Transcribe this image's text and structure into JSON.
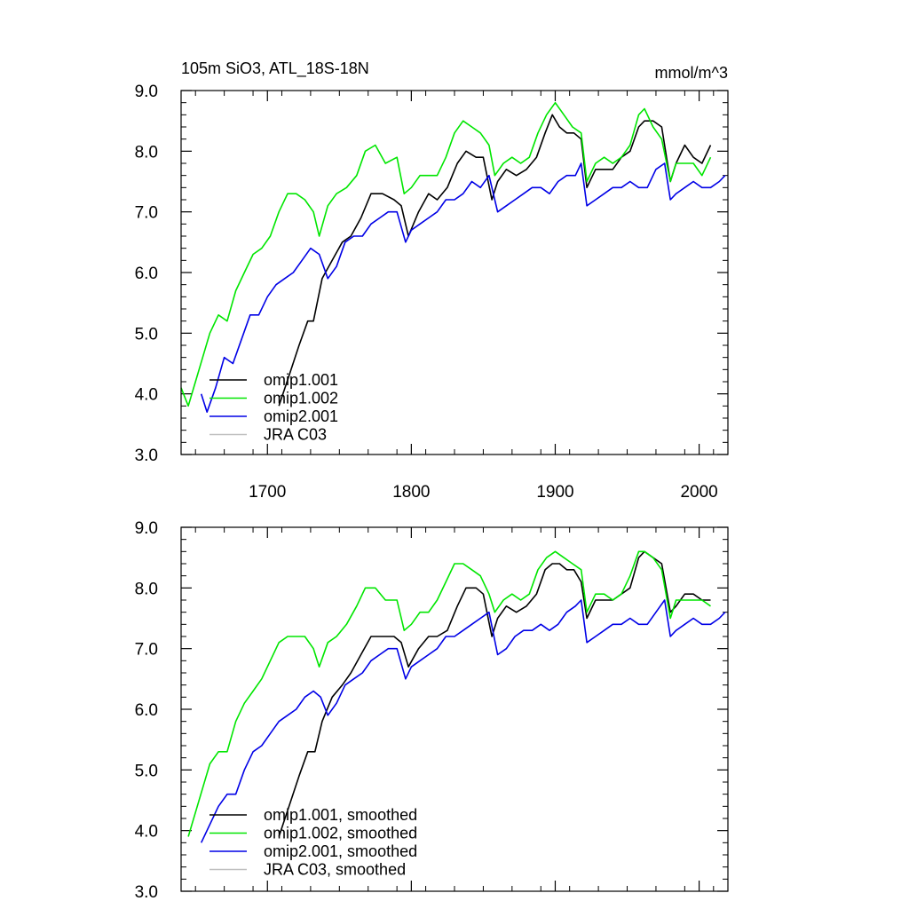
{
  "chart_data": [
    {
      "type": "line",
      "id": "raw",
      "title": "105m SiO3, ATL_18S-18N",
      "units_label": "mmol/m^3",
      "xlim": [
        1640,
        2020
      ],
      "ylim": [
        3.0,
        9.0
      ],
      "x_ticks": [
        1700,
        1800,
        1900,
        2000
      ],
      "x_tick_labels": [
        "1700",
        "1800",
        "1900",
        "2000"
      ],
      "y_ticks": [
        3.0,
        4.0,
        5.0,
        6.0,
        7.0,
        8.0,
        9.0
      ],
      "y_tick_labels": [
        "3.0",
        "4.0",
        "5.0",
        "6.0",
        "7.0",
        "8.0",
        "9.0"
      ],
      "legend": [
        "omip1.001",
        "omip1.002",
        "omip2.001",
        "JRA C03"
      ],
      "series": [
        {
          "name": "omip1.001",
          "color": "#000000",
          "x": [
            1708,
            1715,
            1722,
            1728,
            1732,
            1738,
            1745,
            1752,
            1758,
            1765,
            1772,
            1780,
            1788,
            1793,
            1798,
            1805,
            1812,
            1818,
            1825,
            1832,
            1838,
            1845,
            1850,
            1856,
            1860,
            1866,
            1873,
            1880,
            1887,
            1893,
            1898,
            1903,
            1908,
            1913,
            1918,
            1922,
            1928,
            1934,
            1940,
            1946,
            1952,
            1958,
            1962,
            1968,
            1974,
            1980,
            1984,
            1990,
            1996,
            2002,
            2008
          ],
          "values": [
            3.8,
            4.3,
            4.8,
            5.2,
            5.2,
            5.9,
            6.2,
            6.5,
            6.6,
            6.9,
            7.3,
            7.3,
            7.2,
            7.1,
            6.6,
            7.0,
            7.3,
            7.2,
            7.4,
            7.8,
            8.0,
            7.9,
            7.9,
            7.2,
            7.5,
            7.7,
            7.6,
            7.7,
            7.9,
            8.3,
            8.6,
            8.4,
            8.3,
            8.3,
            8.2,
            7.4,
            7.7,
            7.7,
            7.7,
            7.9,
            8.0,
            8.4,
            8.5,
            8.5,
            8.4,
            7.5,
            7.8,
            8.1,
            7.9,
            7.8,
            8.1
          ]
        },
        {
          "name": "omip1.002",
          "color": "#00e600",
          "x": [
            1640,
            1645,
            1650,
            1655,
            1660,
            1666,
            1672,
            1678,
            1684,
            1690,
            1696,
            1702,
            1708,
            1714,
            1720,
            1726,
            1732,
            1736,
            1742,
            1748,
            1755,
            1762,
            1768,
            1775,
            1782,
            1790,
            1795,
            1800,
            1806,
            1812,
            1818,
            1824,
            1830,
            1836,
            1842,
            1848,
            1854,
            1858,
            1864,
            1870,
            1876,
            1882,
            1888,
            1894,
            1900,
            1906,
            1912,
            1918,
            1922,
            1928,
            1934,
            1940,
            1946,
            1952,
            1958,
            1962,
            1968,
            1974,
            1980,
            1984,
            1990,
            1996,
            2002,
            2008
          ],
          "values": [
            4.1,
            3.8,
            4.2,
            4.6,
            5.0,
            5.3,
            5.2,
            5.7,
            6.0,
            6.3,
            6.4,
            6.6,
            7.0,
            7.3,
            7.3,
            7.2,
            7.0,
            6.6,
            7.1,
            7.3,
            7.4,
            7.6,
            8.0,
            8.1,
            7.8,
            7.9,
            7.3,
            7.4,
            7.6,
            7.6,
            7.6,
            7.9,
            8.3,
            8.5,
            8.4,
            8.3,
            8.1,
            7.6,
            7.8,
            7.9,
            7.8,
            7.9,
            8.3,
            8.6,
            8.8,
            8.6,
            8.4,
            8.3,
            7.5,
            7.8,
            7.9,
            7.8,
            7.9,
            8.1,
            8.6,
            8.7,
            8.4,
            8.2,
            7.5,
            7.8,
            7.8,
            7.8,
            7.6,
            7.9
          ]
        },
        {
          "name": "omip2.001",
          "color": "#0000e6",
          "x": [
            1654,
            1658,
            1664,
            1670,
            1676,
            1682,
            1688,
            1694,
            1700,
            1706,
            1712,
            1718,
            1724,
            1730,
            1736,
            1742,
            1748,
            1754,
            1760,
            1766,
            1772,
            1778,
            1784,
            1790,
            1796,
            1800,
            1806,
            1812,
            1818,
            1824,
            1830,
            1836,
            1842,
            1848,
            1854,
            1860,
            1866,
            1872,
            1878,
            1884,
            1890,
            1896,
            1902,
            1908,
            1914,
            1918,
            1922,
            1928,
            1934,
            1940,
            1946,
            1952,
            1958,
            1964,
            1970,
            1976,
            1980,
            1984,
            1990,
            1996,
            2002,
            2008,
            2014,
            2018
          ],
          "values": [
            4.0,
            3.7,
            4.1,
            4.6,
            4.5,
            4.9,
            5.3,
            5.3,
            5.6,
            5.8,
            5.9,
            6.0,
            6.2,
            6.4,
            6.3,
            5.9,
            6.1,
            6.5,
            6.6,
            6.6,
            6.8,
            6.9,
            7.0,
            7.0,
            6.5,
            6.7,
            6.8,
            6.9,
            7.0,
            7.2,
            7.2,
            7.3,
            7.5,
            7.4,
            7.6,
            7.0,
            7.1,
            7.2,
            7.3,
            7.4,
            7.4,
            7.3,
            7.5,
            7.6,
            7.6,
            7.8,
            7.1,
            7.2,
            7.3,
            7.4,
            7.4,
            7.5,
            7.4,
            7.4,
            7.7,
            7.8,
            7.2,
            7.3,
            7.4,
            7.5,
            7.4,
            7.4,
            7.5,
            7.6
          ]
        },
        {
          "name": "JRA C03",
          "color": "#c0c0c0",
          "x": [],
          "values": []
        }
      ]
    },
    {
      "type": "line",
      "id": "smoothed",
      "xlim": [
        1640,
        2020
      ],
      "ylim": [
        3.0,
        9.0
      ],
      "x_ticks": [
        1700,
        1800,
        1900,
        2000
      ],
      "y_ticks": [
        3.0,
        4.0,
        5.0,
        6.0,
        7.0,
        8.0,
        9.0
      ],
      "y_tick_labels": [
        "3.0",
        "4.0",
        "5.0",
        "6.0",
        "7.0",
        "8.0",
        "9.0"
      ],
      "legend": [
        "omip1.001, smoothed",
        "omip1.002, smoothed",
        "omip2.001, smoothed",
        "JRA C03, smoothed"
      ],
      "series": [
        {
          "name": "omip1.001, smoothed",
          "color": "#000000",
          "x": [
            1708,
            1715,
            1722,
            1728,
            1733,
            1738,
            1745,
            1752,
            1758,
            1765,
            1772,
            1780,
            1788,
            1793,
            1798,
            1805,
            1812,
            1818,
            1825,
            1832,
            1838,
            1845,
            1850,
            1856,
            1860,
            1866,
            1873,
            1880,
            1887,
            1893,
            1898,
            1903,
            1908,
            1913,
            1918,
            1922,
            1928,
            1934,
            1940,
            1946,
            1952,
            1958,
            1962,
            1968,
            1974,
            1980,
            1984,
            1990,
            1996,
            2002,
            2008
          ],
          "values": [
            3.9,
            4.4,
            4.9,
            5.3,
            5.3,
            5.8,
            6.2,
            6.4,
            6.6,
            6.9,
            7.2,
            7.2,
            7.2,
            7.1,
            6.7,
            7.0,
            7.2,
            7.2,
            7.3,
            7.7,
            8.0,
            8.0,
            7.9,
            7.2,
            7.5,
            7.7,
            7.6,
            7.7,
            7.9,
            8.3,
            8.4,
            8.4,
            8.3,
            8.3,
            8.1,
            7.5,
            7.8,
            7.8,
            7.8,
            7.9,
            8.0,
            8.5,
            8.6,
            8.5,
            8.4,
            7.6,
            7.7,
            7.9,
            7.9,
            7.8,
            7.8
          ]
        },
        {
          "name": "omip1.002, smoothed",
          "color": "#00e600",
          "x": [
            1645,
            1650,
            1655,
            1660,
            1666,
            1672,
            1678,
            1684,
            1690,
            1696,
            1702,
            1708,
            1714,
            1720,
            1726,
            1732,
            1736,
            1742,
            1748,
            1755,
            1762,
            1768,
            1775,
            1782,
            1790,
            1795,
            1800,
            1806,
            1812,
            1818,
            1824,
            1830,
            1836,
            1842,
            1848,
            1854,
            1858,
            1864,
            1870,
            1876,
            1882,
            1888,
            1894,
            1900,
            1906,
            1912,
            1918,
            1922,
            1928,
            1934,
            1940,
            1946,
            1952,
            1958,
            1962,
            1968,
            1974,
            1980,
            1984,
            1990,
            1996,
            2002,
            2008
          ],
          "values": [
            3.9,
            4.3,
            4.7,
            5.1,
            5.3,
            5.3,
            5.8,
            6.1,
            6.3,
            6.5,
            6.8,
            7.1,
            7.2,
            7.2,
            7.2,
            7.0,
            6.7,
            7.1,
            7.2,
            7.4,
            7.7,
            8.0,
            8.0,
            7.8,
            7.8,
            7.3,
            7.4,
            7.6,
            7.6,
            7.8,
            8.1,
            8.4,
            8.4,
            8.3,
            8.2,
            7.9,
            7.6,
            7.8,
            7.9,
            7.8,
            7.9,
            8.3,
            8.5,
            8.6,
            8.5,
            8.4,
            8.3,
            7.6,
            7.9,
            7.9,
            7.8,
            7.9,
            8.2,
            8.6,
            8.6,
            8.5,
            8.3,
            7.5,
            7.8,
            7.8,
            7.8,
            7.8,
            7.7
          ]
        },
        {
          "name": "omip2.001, smoothed",
          "color": "#0000e6",
          "x": [
            1654,
            1660,
            1666,
            1672,
            1678,
            1684,
            1690,
            1696,
            1702,
            1708,
            1714,
            1720,
            1726,
            1732,
            1737,
            1742,
            1748,
            1754,
            1760,
            1766,
            1772,
            1778,
            1784,
            1790,
            1796,
            1800,
            1806,
            1812,
            1818,
            1824,
            1830,
            1836,
            1842,
            1848,
            1854,
            1860,
            1866,
            1872,
            1878,
            1884,
            1890,
            1896,
            1902,
            1908,
            1914,
            1918,
            1922,
            1928,
            1934,
            1940,
            1946,
            1952,
            1958,
            1964,
            1970,
            1976,
            1980,
            1984,
            1990,
            1996,
            2002,
            2008,
            2014,
            2018
          ],
          "values": [
            3.8,
            4.1,
            4.4,
            4.6,
            4.6,
            5.0,
            5.3,
            5.4,
            5.6,
            5.8,
            5.9,
            6.0,
            6.2,
            6.3,
            6.2,
            5.9,
            6.1,
            6.4,
            6.5,
            6.6,
            6.8,
            6.9,
            7.0,
            7.0,
            6.5,
            6.7,
            6.8,
            6.9,
            7.0,
            7.2,
            7.2,
            7.3,
            7.4,
            7.5,
            7.6,
            6.9,
            7.0,
            7.2,
            7.3,
            7.3,
            7.4,
            7.3,
            7.4,
            7.6,
            7.7,
            7.8,
            7.1,
            7.2,
            7.3,
            7.4,
            7.4,
            7.5,
            7.4,
            7.4,
            7.6,
            7.8,
            7.2,
            7.3,
            7.4,
            7.5,
            7.4,
            7.4,
            7.5,
            7.6
          ]
        },
        {
          "name": "JRA C03, smoothed",
          "color": "#c0c0c0",
          "x": [],
          "values": []
        }
      ]
    }
  ]
}
